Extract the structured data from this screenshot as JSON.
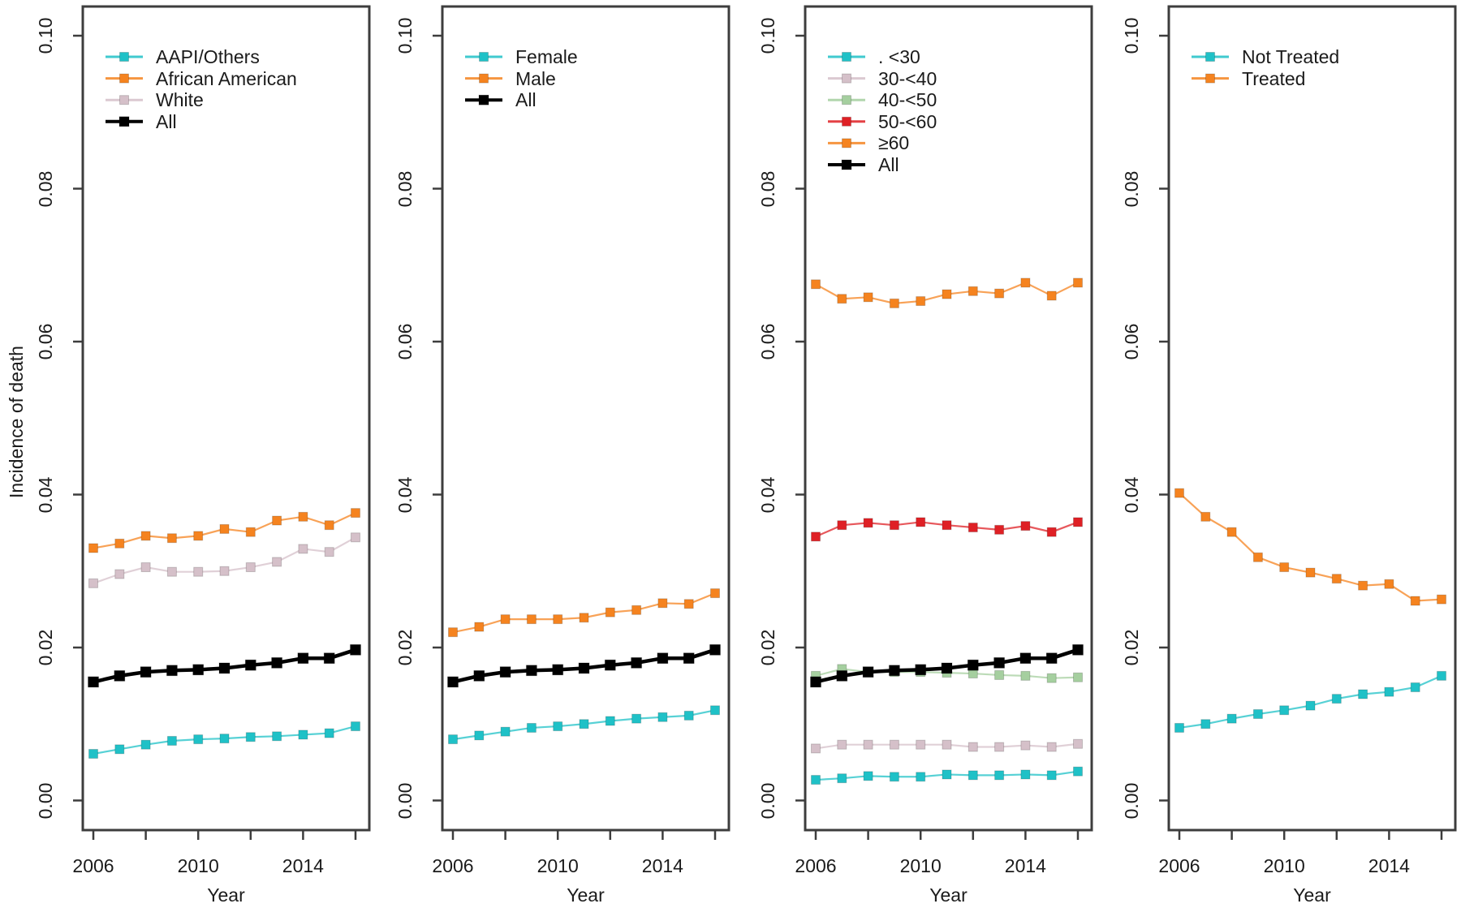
{
  "figure": {
    "ylabel": "Incidence of death",
    "axes": {
      "y_ticks": [
        0.0,
        0.02,
        0.04,
        0.06,
        0.08,
        0.1
      ],
      "y_tick_labels": [
        "0.00",
        "0.02",
        "0.04",
        "0.06",
        "0.08",
        "0.10"
      ],
      "x_ticks": [
        2006,
        2008,
        2010,
        2012,
        2014,
        2016
      ],
      "x_labeled_years": [
        2006,
        2010,
        2014
      ],
      "x_tick_labels": [
        "2006",
        "2010",
        "2014"
      ],
      "ylim": [
        0.0,
        0.1
      ],
      "xlim": [
        2006,
        2016
      ],
      "grid": "off",
      "legend_position": "top-left-inside"
    },
    "colors": {
      "cyan": "#1FC1C7",
      "orange": "#F5831F",
      "pink": "#D5C0C9",
      "green": "#A5CF9F",
      "red": "#DF2025",
      "black": "#000000",
      "axis": "#3D3D3D",
      "text": "#1B1B1B"
    }
  },
  "chart_data": [
    {
      "type": "line",
      "title": "",
      "xlabel": "Year",
      "ylim": [
        0.0,
        0.1
      ],
      "x": [
        2006,
        2007,
        2008,
        2009,
        2010,
        2011,
        2012,
        2013,
        2014,
        2015,
        2016
      ],
      "series": [
        {
          "name": "AAPI/Others",
          "color": "#1FC1C7",
          "emphasis": false,
          "values": [
            0.0061,
            0.0067,
            0.0073,
            0.0078,
            0.008,
            0.0081,
            0.0083,
            0.0084,
            0.0086,
            0.0088,
            0.0097
          ]
        },
        {
          "name": "African American",
          "color": "#F5831F",
          "emphasis": false,
          "values": [
            0.033,
            0.0336,
            0.0346,
            0.0343,
            0.0346,
            0.0355,
            0.0351,
            0.0366,
            0.0371,
            0.036,
            0.0376
          ]
        },
        {
          "name": "White",
          "color": "#D5C0C9",
          "emphasis": false,
          "values": [
            0.0284,
            0.0296,
            0.0305,
            0.0299,
            0.0299,
            0.03,
            0.0305,
            0.0312,
            0.0329,
            0.0325,
            0.0344
          ]
        },
        {
          "name": "All",
          "color": "#000000",
          "emphasis": true,
          "values": [
            0.0155,
            0.0163,
            0.0168,
            0.017,
            0.0171,
            0.0173,
            0.0177,
            0.018,
            0.0186,
            0.0186,
            0.0197
          ]
        }
      ]
    },
    {
      "type": "line",
      "title": "",
      "xlabel": "Year",
      "ylim": [
        0.0,
        0.1
      ],
      "x": [
        2006,
        2007,
        2008,
        2009,
        2010,
        2011,
        2012,
        2013,
        2014,
        2015,
        2016
      ],
      "series": [
        {
          "name": "Female",
          "color": "#1FC1C7",
          "emphasis": false,
          "values": [
            0.008,
            0.0085,
            0.009,
            0.0095,
            0.0097,
            0.01,
            0.0104,
            0.0107,
            0.0109,
            0.0111,
            0.0118
          ]
        },
        {
          "name": "Male",
          "color": "#F5831F",
          "emphasis": false,
          "values": [
            0.022,
            0.0227,
            0.0237,
            0.0237,
            0.0237,
            0.0239,
            0.0246,
            0.0249,
            0.0258,
            0.0257,
            0.0271
          ]
        },
        {
          "name": "All",
          "color": "#000000",
          "emphasis": true,
          "values": [
            0.0155,
            0.0163,
            0.0168,
            0.017,
            0.0171,
            0.0173,
            0.0177,
            0.018,
            0.0186,
            0.0186,
            0.0197
          ]
        }
      ]
    },
    {
      "type": "line",
      "title": "",
      "xlabel": "Year",
      "ylim": [
        0.0,
        0.1
      ],
      "x": [
        2006,
        2007,
        2008,
        2009,
        2010,
        2011,
        2012,
        2013,
        2014,
        2015,
        2016
      ],
      "series": [
        {
          "name": ". <30",
          "color": "#1FC1C7",
          "emphasis": false,
          "values": [
            0.0027,
            0.0029,
            0.0032,
            0.0031,
            0.0031,
            0.0034,
            0.0033,
            0.0033,
            0.0034,
            0.0033,
            0.0038
          ]
        },
        {
          "name": "30-<40",
          "color": "#D5C0C9",
          "emphasis": false,
          "values": [
            0.0068,
            0.0073,
            0.0073,
            0.0073,
            0.0073,
            0.0073,
            0.007,
            0.007,
            0.0072,
            0.007,
            0.0074
          ]
        },
        {
          "name": "40-<50",
          "color": "#A5CF9F",
          "emphasis": false,
          "values": [
            0.0163,
            0.0172,
            0.0168,
            0.0168,
            0.0168,
            0.0167,
            0.0166,
            0.0164,
            0.0163,
            0.016,
            0.0161
          ]
        },
        {
          "name": "50-<60",
          "color": "#DF2025",
          "emphasis": false,
          "values": [
            0.0345,
            0.036,
            0.0363,
            0.036,
            0.0364,
            0.036,
            0.0357,
            0.0354,
            0.0359,
            0.0351,
            0.0364
          ]
        },
        {
          "name": "≥60",
          "color": "#F5831F",
          "emphasis": false,
          "values": [
            0.0675,
            0.0656,
            0.0658,
            0.065,
            0.0653,
            0.0662,
            0.0666,
            0.0663,
            0.0677,
            0.066,
            0.0677
          ]
        },
        {
          "name": "All",
          "color": "#000000",
          "emphasis": true,
          "values": [
            0.0155,
            0.0163,
            0.0168,
            0.017,
            0.0171,
            0.0173,
            0.0177,
            0.018,
            0.0186,
            0.0186,
            0.0197
          ]
        }
      ]
    },
    {
      "type": "line",
      "title": "",
      "xlabel": "Year",
      "ylim": [
        0.0,
        0.1
      ],
      "x": [
        2006,
        2007,
        2008,
        2009,
        2010,
        2011,
        2012,
        2013,
        2014,
        2015,
        2016
      ],
      "series": [
        {
          "name": "Not Treated",
          "color": "#1FC1C7",
          "emphasis": false,
          "values": [
            0.0095,
            0.01,
            0.0107,
            0.0113,
            0.0118,
            0.0124,
            0.0133,
            0.0139,
            0.0142,
            0.0148,
            0.0163
          ]
        },
        {
          "name": "Treated",
          "color": "#F5831F",
          "emphasis": false,
          "values": [
            0.0402,
            0.0371,
            0.0351,
            0.0318,
            0.0305,
            0.0298,
            0.029,
            0.0281,
            0.0283,
            0.0261,
            0.0263
          ]
        }
      ]
    }
  ]
}
